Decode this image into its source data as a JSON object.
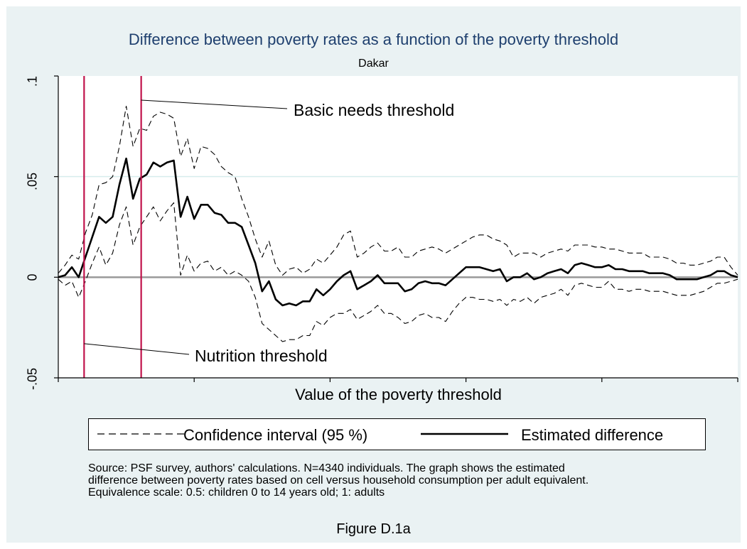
{
  "figure": {
    "caption": "Figure D.1a",
    "note_lines": [
      "Source: PSF survey, authors' calculations. N=4340 individuals. The graph shows the estimated",
      "difference between poverty rates based on cell versus household consumption per adult equivalent.",
      "Equivalence scale: 0.5: children 0 to 14 years old; 1: adults"
    ]
  },
  "colors": {
    "background_frame": "#eaf2f3",
    "title": "#1e3f6e",
    "threshold_lines": "#c0124b",
    "gridline": "#d6ecec",
    "zero_line": "#999999"
  },
  "chart_data": {
    "type": "line",
    "title": "Difference between poverty rates as a function of the poverty threshold",
    "subtitle": "Dakar",
    "xlabel": "Value of the poverty threshold",
    "ylabel": "",
    "xlim": [
      0,
      100
    ],
    "ylim": [
      -0.05,
      0.1
    ],
    "y_ticks": [
      ".1",
      ".05",
      "0",
      "-.05"
    ],
    "x_ticks_count": 6,
    "grid": "y-major",
    "legend": {
      "placement": "bottom",
      "entries": [
        "Confidence interval (95 %)",
        "Estimated difference"
      ]
    },
    "annotations": [
      {
        "text": "Basic needs threshold",
        "x": 12.2,
        "y": 0.088
      },
      {
        "text": "Nutrition threshold",
        "x": 3.8,
        "y": -0.033
      }
    ],
    "vertical_lines": [
      3.8,
      12.2
    ],
    "x": [
      0,
      1,
      2,
      3,
      4,
      5,
      6,
      7,
      8,
      9,
      10,
      11,
      12,
      13,
      14,
      15,
      16,
      17,
      18,
      19,
      20,
      21,
      22,
      23,
      24,
      25,
      26,
      27,
      28,
      29,
      30,
      31,
      32,
      33,
      34,
      35,
      36,
      37,
      38,
      39,
      40,
      41,
      42,
      43,
      44,
      45,
      46,
      47,
      48,
      49,
      50,
      51,
      52,
      53,
      54,
      55,
      56,
      57,
      58,
      59,
      60,
      61,
      62,
      63,
      64,
      65,
      66,
      67,
      68,
      69,
      70,
      71,
      72,
      73,
      74,
      75,
      76,
      77,
      78,
      79,
      80,
      81,
      82,
      83,
      84,
      85,
      86,
      87,
      88,
      89,
      90,
      91,
      92,
      93,
      94,
      95,
      96,
      97,
      98,
      99,
      100
    ],
    "series": [
      {
        "name": "Estimated difference",
        "style": "solid",
        "values": [
          0,
          0.001,
          0.005,
          0,
          0.01,
          0.02,
          0.03,
          0.027,
          0.03,
          0.046,
          0.059,
          0.039,
          0.049,
          0.051,
          0.057,
          0.055,
          0.057,
          0.058,
          0.03,
          0.04,
          0.029,
          0.036,
          0.036,
          0.032,
          0.031,
          0.027,
          0.027,
          0.025,
          0.016,
          0.007,
          -0.007,
          -0.002,
          -0.011,
          -0.014,
          -0.013,
          -0.014,
          -0.012,
          -0.012,
          -0.006,
          -0.009,
          -0.006,
          -0.002,
          0.001,
          0.003,
          -0.006,
          -0.004,
          -0.002,
          0.001,
          -0.003,
          -0.003,
          -0.003,
          -0.007,
          -0.006,
          -0.003,
          -0.002,
          -0.003,
          -0.003,
          -0.004,
          -0.001,
          0.002,
          0.005,
          0.005,
          0.005,
          0.004,
          0.003,
          0.004,
          -0.002,
          0,
          0,
          0.002,
          -0.001,
          0,
          0.002,
          0.003,
          0.004,
          0.002,
          0.006,
          0.007,
          0.006,
          0.005,
          0.005,
          0.006,
          0.004,
          0.004,
          0.003,
          0.003,
          0.003,
          0.002,
          0.002,
          0.002,
          0.001,
          -0.001,
          -0.001,
          -0.001,
          -0.001,
          0,
          0.001,
          0.003,
          0.003,
          0.001,
          0
        ]
      },
      {
        "name": "Upper bound (95 %)",
        "style": "dashed",
        "values": [
          0.002,
          0.006,
          0.011,
          0.009,
          0.022,
          0.031,
          0.046,
          0.047,
          0.05,
          0.065,
          0.085,
          0.065,
          0.074,
          0.073,
          0.08,
          0.082,
          0.081,
          0.079,
          0.06,
          0.069,
          0.054,
          0.065,
          0.064,
          0.061,
          0.055,
          0.052,
          0.05,
          0.039,
          0.03,
          0.019,
          0.01,
          0.018,
          0.006,
          0.001,
          0.004,
          0.005,
          0.002,
          0.004,
          0.009,
          0.007,
          0.011,
          0.015,
          0.021,
          0.023,
          0.01,
          0.012,
          0.015,
          0.017,
          0.013,
          0.013,
          0.015,
          0.01,
          0.01,
          0.013,
          0.014,
          0.015,
          0.014,
          0.012,
          0.014,
          0.016,
          0.018,
          0.02,
          0.021,
          0.021,
          0.019,
          0.018,
          0.016,
          0.01,
          0.012,
          0.012,
          0.012,
          0.01,
          0.012,
          0.013,
          0.014,
          0.013,
          0.016,
          0.016,
          0.016,
          0.015,
          0.015,
          0.014,
          0.014,
          0.013,
          0.012,
          0.012,
          0.012,
          0.01,
          0.01,
          0.01,
          0.009,
          0.007,
          0.007,
          0.006,
          0.006,
          0.007,
          0.008,
          0.01,
          0.01,
          0.005,
          0.001
        ]
      },
      {
        "name": "Lower bound (95 %)",
        "style": "dashed",
        "values": [
          -0.001,
          -0.004,
          -0.002,
          -0.01,
          -0.002,
          0.007,
          0.015,
          0.006,
          0.012,
          0.026,
          0.035,
          0.016,
          0.025,
          0.03,
          0.035,
          0.028,
          0.033,
          0.037,
          0.001,
          0.011,
          0.003,
          0.007,
          0.008,
          0.003,
          0.005,
          0.001,
          0.003,
          0.001,
          -0.002,
          -0.01,
          -0.023,
          -0.026,
          -0.029,
          -0.032,
          -0.031,
          -0.031,
          -0.029,
          -0.029,
          -0.022,
          -0.024,
          -0.02,
          -0.018,
          -0.018,
          -0.016,
          -0.021,
          -0.019,
          -0.017,
          -0.014,
          -0.018,
          -0.018,
          -0.02,
          -0.023,
          -0.022,
          -0.019,
          -0.018,
          -0.02,
          -0.02,
          -0.022,
          -0.017,
          -0.013,
          -0.01,
          -0.01,
          -0.011,
          -0.011,
          -0.012,
          -0.011,
          -0.014,
          -0.011,
          -0.012,
          -0.01,
          -0.013,
          -0.01,
          -0.009,
          -0.008,
          -0.006,
          -0.009,
          -0.004,
          -0.003,
          -0.004,
          -0.005,
          -0.005,
          -0.002,
          -0.006,
          -0.006,
          -0.007,
          -0.006,
          -0.006,
          -0.007,
          -0.007,
          -0.007,
          -0.008,
          -0.009,
          -0.009,
          -0.009,
          -0.008,
          -0.007,
          -0.005,
          -0.003,
          -0.003,
          -0.002,
          -0.001
        ]
      }
    ]
  }
}
